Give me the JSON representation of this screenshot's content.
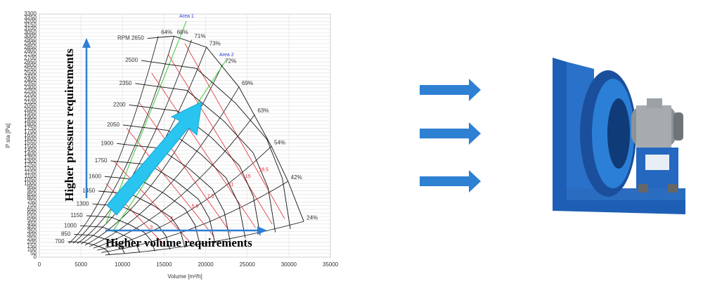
{
  "chart_data": {
    "type": "fan_map",
    "y_label": "P sta [Pa]",
    "x_label": "Volume [m³/h]",
    "xlim": [
      0,
      35000
    ],
    "xticks": [
      0,
      5000,
      10000,
      15000,
      20000,
      25000,
      30000,
      35000
    ],
    "ylim": [
      0,
      3300
    ],
    "yticks": [
      0,
      50,
      100,
      150,
      200,
      250,
      300,
      350,
      400,
      450,
      500,
      550,
      600,
      650,
      700,
      750,
      800,
      850,
      900,
      950,
      1000,
      1050,
      1100,
      1150,
      1200,
      1250,
      1300,
      1350,
      1400,
      1450,
      1500,
      1550,
      1600,
      1650,
      1700,
      1750,
      1800,
      1850,
      1900,
      1950,
      2000,
      2050,
      2100,
      2150,
      2200,
      2250,
      2300,
      2350,
      2400,
      2450,
      2500,
      2550,
      2600,
      2650,
      2700,
      2750,
      2800,
      2850,
      2900,
      2950,
      3000,
      3050,
      3100,
      3150,
      3200,
      3250,
      3300
    ],
    "grid": true,
    "rpm_curves": [
      {
        "name": "RPM 2650",
        "x": [
          13000,
          16200,
          20100,
          24000,
          27900,
          29900,
          31800
        ],
        "y": [
          2970,
          3000,
          2850,
          2310,
          1505,
          1030,
          485
        ]
      },
      {
        "name": "2500",
        "x": [
          12260,
          18860,
          23580,
          27350,
          29230,
          30180
        ],
        "y": [
          2670,
          2563,
          2092,
          1602,
          1068,
          383
        ]
      },
      {
        "name": "2350",
        "x": [
          11530,
          17740,
          22180,
          25720,
          27500,
          28380
        ],
        "y": [
          2358,
          2264,
          1847,
          1415,
          943,
          338
        ]
      },
      {
        "name": "2200",
        "x": [
          10790,
          16600,
          20750,
          24070,
          25730,
          26560
        ],
        "y": [
          2067,
          1984,
          1619,
          1240,
          827,
          296
        ]
      },
      {
        "name": "2050",
        "x": [
          10060,
          15480,
          19350,
          22450,
          23990,
          24770
        ],
        "y": [
          1794,
          1722,
          1405,
          1076,
          718,
          257
        ]
      },
      {
        "name": "1900",
        "x": [
          9320,
          14340,
          17930,
          20790,
          22230,
          22940
        ],
        "y": [
          1542,
          1480,
          1208,
          925,
          617,
          221
        ]
      },
      {
        "name": "1750",
        "x": [
          8580,
          13200,
          16500,
          19140,
          20460,
          21120
        ],
        "y": [
          1308,
          1256,
          1025,
          785,
          523,
          187
        ]
      },
      {
        "name": "1600",
        "x": [
          7850,
          12080,
          15100,
          17520,
          18720,
          19330
        ],
        "y": [
          1095,
          1051,
          858,
          657,
          438,
          157
        ]
      },
      {
        "name": "1450",
        "x": [
          7110,
          10940,
          13680,
          15860,
          16960,
          17500
        ],
        "y": [
          897,
          861,
          703,
          538,
          359,
          129
        ]
      },
      {
        "name": "1300",
        "x": [
          6380,
          9820,
          12280,
          14240,
          15220,
          15710
        ],
        "y": [
          723,
          694,
          566,
          434,
          289,
          104
        ]
      },
      {
        "name": "1150",
        "x": [
          5640,
          8680,
          10850,
          12590,
          13450,
          13890
        ],
        "y": [
          564,
          541,
          442,
          338,
          226,
          81
        ]
      },
      {
        "name": "1000",
        "x": [
          4900,
          7540,
          9430,
          10930,
          11690,
          12060
        ],
        "y": [
          426,
          409,
          334,
          256,
          170,
          61
        ]
      },
      {
        "name": "850",
        "x": [
          4170,
          6420,
          8030,
          9310,
          9950,
          10270
        ],
        "y": [
          309,
          297,
          242,
          185,
          124,
          44
        ]
      },
      {
        "name": "700",
        "x": [
          3430,
          5280,
          6600,
          7660,
          8180,
          8450
        ],
        "y": [
          210,
          202,
          165,
          126,
          84,
          30
        ]
      }
    ],
    "efficiency_lines": [
      {
        "name": "64%",
        "x": 14300,
        "y": 3000
      },
      {
        "name": "68%",
        "x": 16200,
        "y": 3000
      },
      {
        "name": "71%",
        "x": 18300,
        "y": 2950
      },
      {
        "name": "73%",
        "x": 20100,
        "y": 2850
      },
      {
        "name": "72%",
        "x": 22000,
        "y": 2610
      },
      {
        "name": "69%",
        "x": 24000,
        "y": 2310
      },
      {
        "name": "63%",
        "x": 25900,
        "y": 1935
      },
      {
        "name": "54%",
        "x": 27900,
        "y": 1505
      },
      {
        "name": "42%",
        "x": 29900,
        "y": 1030
      },
      {
        "name": "24%",
        "x": 31800,
        "y": 485
      }
    ],
    "power_lines": [
      {
        "name": "18.5",
        "x": [
          17500,
          29500
        ],
        "y": [
          2900,
          520
        ]
      },
      {
        "name": "15",
        "x": [
          15500,
          28000
        ],
        "y": [
          2750,
          450
        ]
      },
      {
        "name": "11",
        "x": [
          13500,
          26000
        ],
        "y": [
          2500,
          400
        ]
      },
      {
        "name": "7.5",
        "x": [
          12000,
          23000
        ],
        "y": [
          2100,
          330
        ]
      },
      {
        "name": "5.5",
        "x": [
          10500,
          21000
        ],
        "y": [
          1750,
          280
        ]
      },
      {
        "name": "4",
        "x": [
          9000,
          18000
        ],
        "y": [
          1300,
          220
        ]
      },
      {
        "name": "3",
        "x": [
          8000,
          15000
        ],
        "y": [
          1000,
          170
        ]
      }
    ],
    "area_lines": [
      {
        "name": "Area 1",
        "x": [
          7950,
          17680
        ],
        "y": [
          440,
          3205
        ]
      },
      {
        "name": "Area 2",
        "x": [
          8790,
          22490
        ],
        "y": [
          343,
          2680
        ]
      }
    ],
    "annotations": [
      "Higher pressure requirements",
      "Higher volume requirements"
    ]
  }
}
